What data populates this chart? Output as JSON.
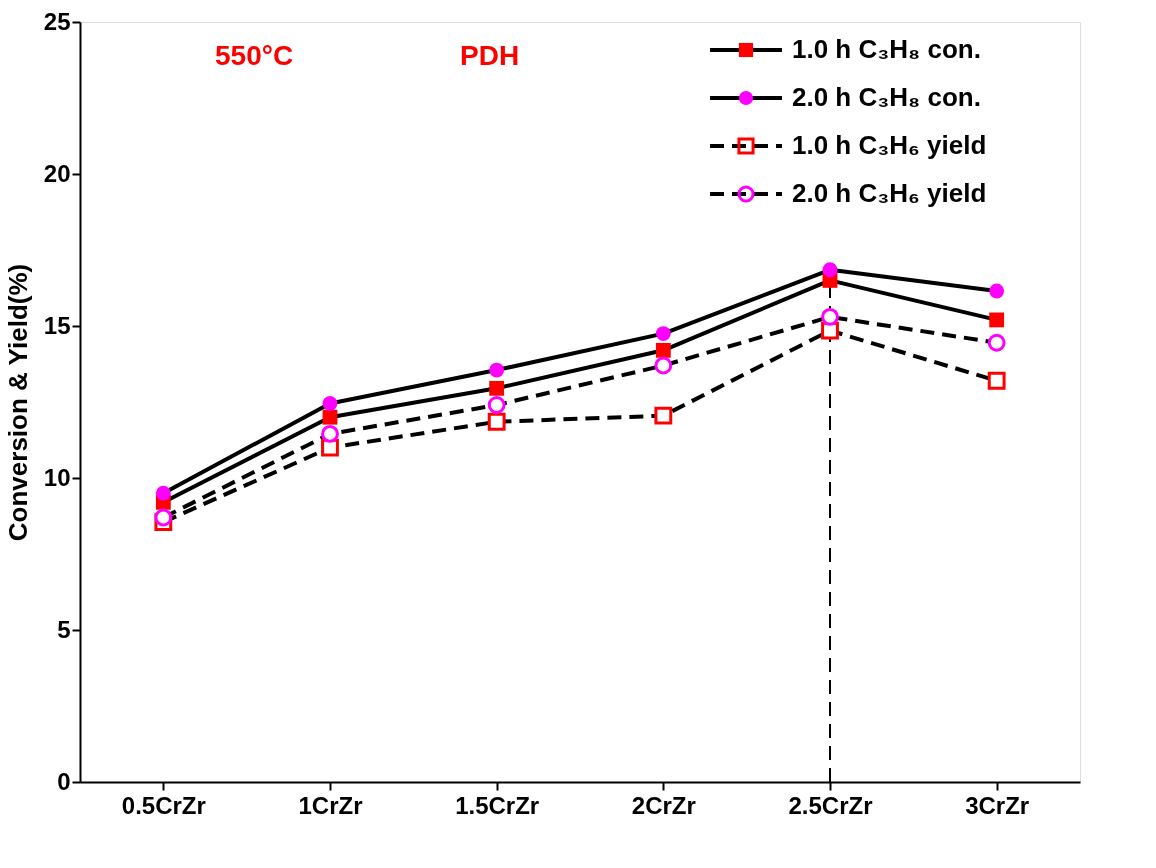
{
  "chart_data": {
    "type": "line",
    "ylabel": "Conversion & Yield(%)",
    "categories": [
      "0.5CrZr",
      "1CrZr",
      "1.5CrZr",
      "2CrZr",
      "2.5CrZr",
      "3CrZr"
    ],
    "series": [
      {
        "name": "1.0 h C₃H₈ con.",
        "color": "#ff0000",
        "marker": "square",
        "line_style": "solid",
        "values": [
          9.2,
          12.0,
          12.95,
          14.2,
          16.5,
          15.2
        ]
      },
      {
        "name": "2.0 h C₃H₈ con.",
        "color": "#ff00ff",
        "marker": "circle",
        "line_style": "solid",
        "values": [
          9.5,
          12.45,
          13.55,
          14.75,
          16.85,
          16.15
        ]
      },
      {
        "name": "1.0 h C₃H₆ yield",
        "color": "#ff0000",
        "marker": "square",
        "line_style": "dashed",
        "values": [
          8.55,
          11.0,
          11.85,
          12.05,
          14.85,
          13.2
        ]
      },
      {
        "name": "2.0 h C₃H₆ yield",
        "color": "#ff00ff",
        "marker": "circle",
        "line_style": "dashed",
        "values": [
          8.7,
          11.45,
          12.4,
          13.7,
          15.3,
          14.45
        ]
      }
    ],
    "ylim": [
      0,
      25
    ],
    "yticks": [
      0,
      5,
      10,
      15,
      20,
      25
    ],
    "grid": false,
    "legend": "top right",
    "ref_lines": [
      {
        "axis": "x",
        "value": "2.5CrZr",
        "line_style": "dashed",
        "color": "#000000"
      }
    ],
    "annotations": [
      "550°C",
      "PDH"
    ]
  }
}
